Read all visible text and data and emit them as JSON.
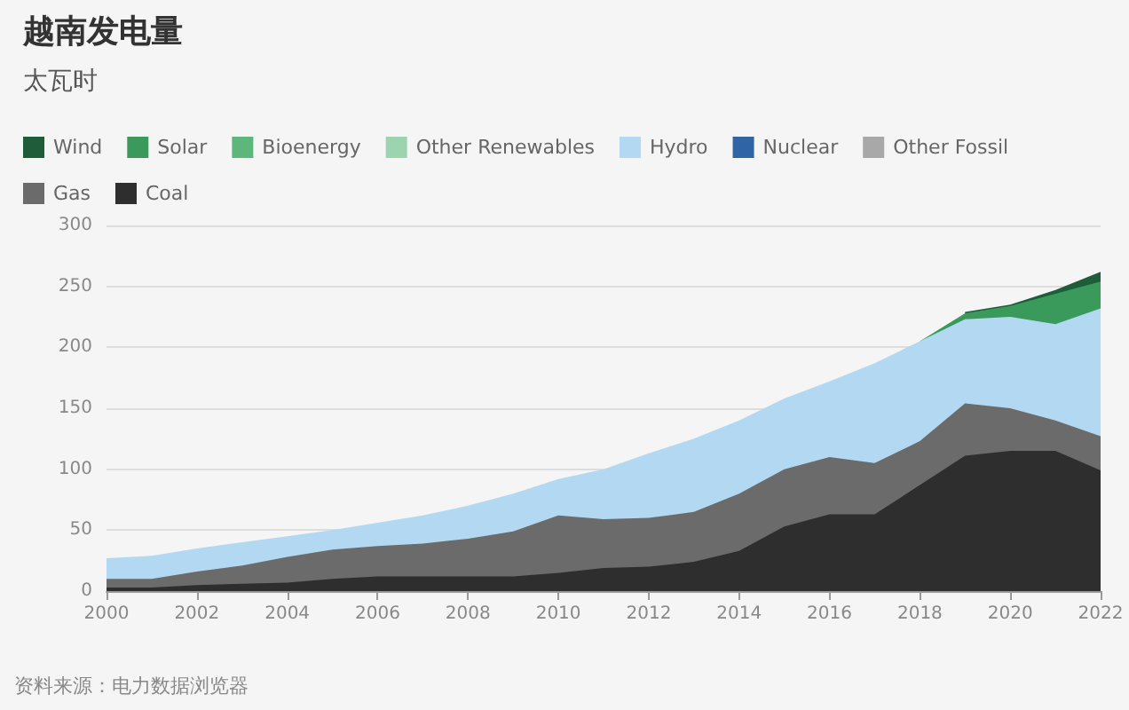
{
  "chart_data": {
    "type": "area",
    "title": "越南发电量",
    "subtitle": "太瓦时",
    "stacked": true,
    "x": [
      2000,
      2001,
      2002,
      2003,
      2004,
      2005,
      2006,
      2007,
      2008,
      2009,
      2010,
      2011,
      2012,
      2013,
      2014,
      2015,
      2016,
      2017,
      2018,
      2019,
      2020,
      2021,
      2022
    ],
    "series": [
      {
        "name": "Coal",
        "color": "#2e2e2e",
        "values": [
          3,
          3,
          5,
          6,
          7,
          10,
          12,
          12,
          12,
          12,
          15,
          19,
          20,
          24,
          33,
          53,
          63,
          63,
          87,
          111,
          115,
          115,
          99
        ]
      },
      {
        "name": "Gas",
        "color": "#6b6b6b",
        "values": [
          7,
          7,
          11,
          15,
          21,
          24,
          25,
          27,
          31,
          37,
          47,
          40,
          40,
          41,
          47,
          47,
          47,
          42,
          36,
          43,
          35,
          25,
          28
        ]
      },
      {
        "name": "Other Fossil",
        "color": "#a8a8a8",
        "values": [
          null,
          null,
          null,
          null,
          null,
          null,
          null,
          null,
          null,
          null,
          null,
          null,
          null,
          null,
          null,
          null,
          null,
          null,
          null,
          null,
          null,
          null,
          null
        ]
      },
      {
        "name": "Nuclear",
        "color": "#2f65a7",
        "values": [
          null,
          null,
          null,
          null,
          null,
          null,
          null,
          null,
          null,
          null,
          null,
          null,
          null,
          null,
          null,
          null,
          null,
          null,
          null,
          null,
          null,
          null,
          null
        ]
      },
      {
        "name": "Hydro",
        "color": "#b3d9f2",
        "values": [
          17,
          19,
          19,
          19,
          17,
          16,
          19,
          23,
          27,
          31,
          30,
          41,
          53,
          60,
          60,
          58,
          62,
          82,
          82,
          69,
          75,
          79,
          105
        ]
      },
      {
        "name": "Other Renewables",
        "color": "#9dd4b0",
        "values": [
          null,
          null,
          null,
          null,
          null,
          null,
          null,
          null,
          null,
          null,
          null,
          null,
          null,
          null,
          null,
          null,
          null,
          null,
          null,
          null,
          null,
          null,
          null
        ]
      },
      {
        "name": "Bioenergy",
        "color": "#5cb87a",
        "values": [
          null,
          null,
          null,
          null,
          null,
          null,
          null,
          null,
          null,
          null,
          null,
          null,
          null,
          null,
          null,
          null,
          null,
          null,
          null,
          null,
          null,
          null,
          null
        ]
      },
      {
        "name": "Solar",
        "color": "#3a9a5b",
        "values": [
          null,
          null,
          null,
          null,
          null,
          null,
          null,
          null,
          null,
          null,
          null,
          null,
          null,
          null,
          null,
          null,
          null,
          null,
          0,
          5,
          9,
          25,
          22
        ]
      },
      {
        "name": "Wind",
        "color": "#1f5c3a",
        "values": [
          null,
          null,
          null,
          null,
          null,
          null,
          null,
          null,
          null,
          null,
          null,
          null,
          null,
          null,
          null,
          null,
          null,
          null,
          null,
          1,
          1,
          3,
          8
        ]
      }
    ],
    "xlim": [
      2000,
      2022
    ],
    "xticks": [
      2000,
      2002,
      2004,
      2006,
      2008,
      2010,
      2012,
      2014,
      2016,
      2018,
      2020,
      2022
    ],
    "ylim": [
      0,
      300
    ],
    "yticks": [
      0,
      50,
      100,
      150,
      200,
      250,
      300
    ],
    "grid": "y",
    "legend": "top",
    "annotations": [
      "资料来源：电力数据浏览器"
    ]
  }
}
